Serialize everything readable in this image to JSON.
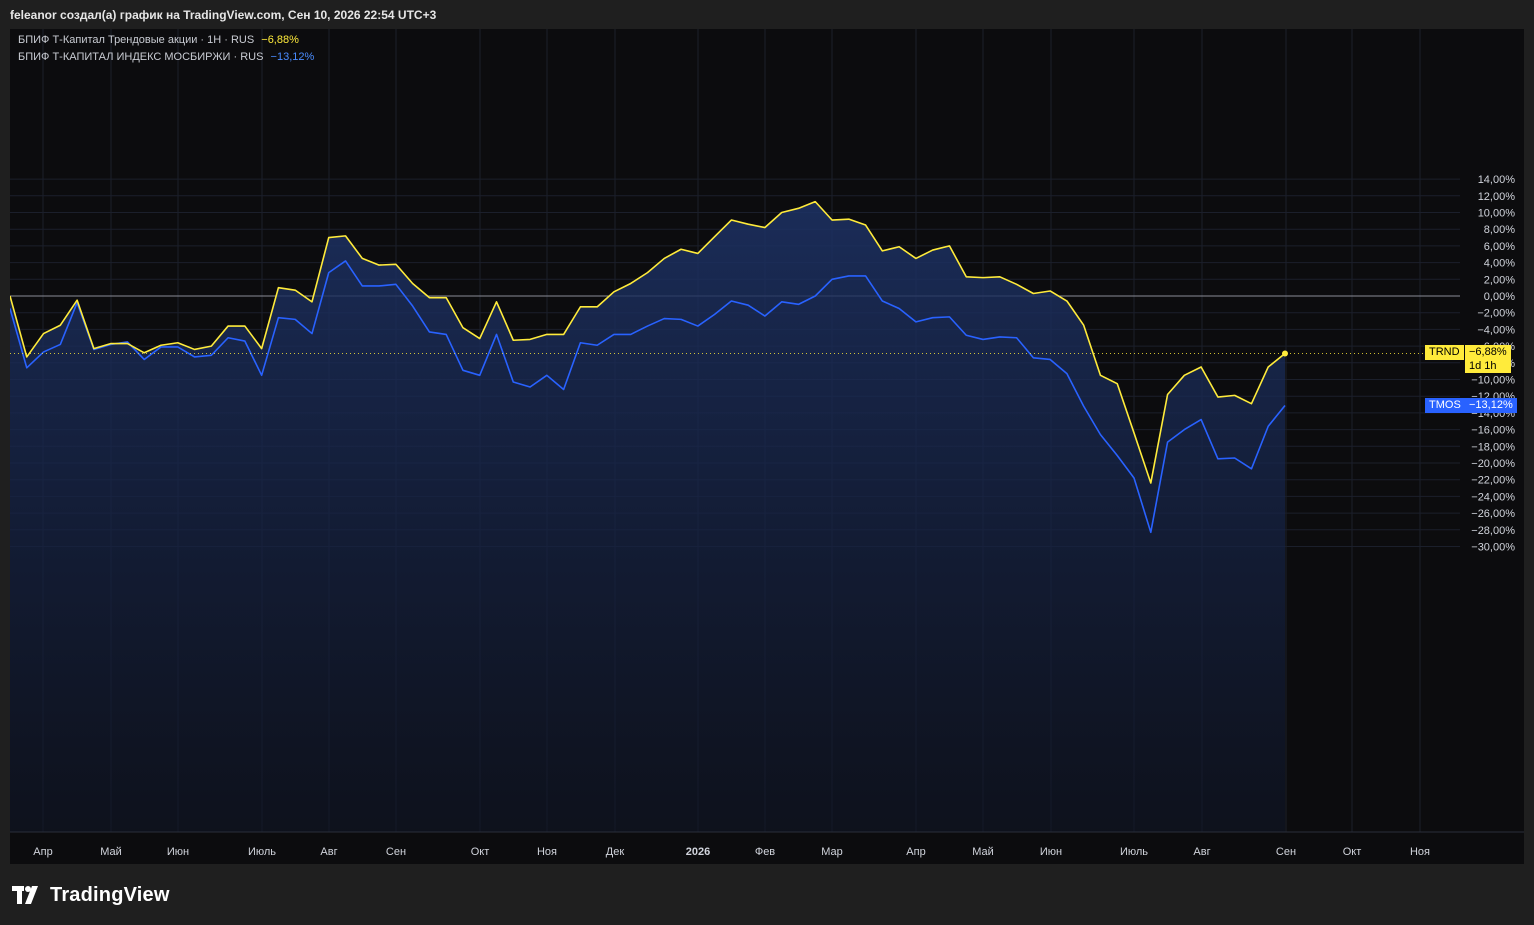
{
  "caption": "feleanor создал(а) график на TradingView.com, Сен 10, 2026 22:54 UTC+3",
  "brand": "TradingView",
  "colors": {
    "background": "#0c0c0e",
    "grid": "#1b1f2b",
    "axis_text": "#d1d4dc",
    "trnd": "#ffeb3b",
    "tmos": "#2962ff",
    "zero_line": "#8a8d96"
  },
  "legend": [
    {
      "label": "БПИФ Т-Капитал Трендовые акции · 1Н · RUS",
      "value": "−6,88%",
      "color": "#ffeb3b"
    },
    {
      "label": "БПИФ Т-КАПИТАЛ ИНДЕКС МОСБИРЖИ · RUS",
      "value": "−13,12%",
      "color": "#4a8cff"
    }
  ],
  "price_tags": {
    "trnd": {
      "symbol": "TRND",
      "value": "−6,88%",
      "sub": "1d 1h"
    },
    "tmos": {
      "symbol": "TMOS",
      "value": "−13,12%"
    }
  },
  "chart_data": {
    "type": "line",
    "y_unit": "%",
    "ylim": [
      -31,
      15.5
    ],
    "y_ticks": [
      "14,00%",
      "12,00%",
      "10,00%",
      "8,00%",
      "6,00%",
      "4,00%",
      "2,00%",
      "0,00%",
      "−2,00%",
      "−4,00%",
      "−6,00%",
      "−8,00%",
      "−10,00%",
      "−12,00%",
      "−14,00%",
      "−16,00%",
      "−18,00%",
      "−20,00%",
      "−22,00%",
      "−24,00%",
      "−26,00%",
      "−28,00%",
      "−30,00%"
    ],
    "x_ticks": [
      "Апр",
      "Май",
      "Июн",
      "Июль",
      "Авг",
      "Сен",
      "Окт",
      "Ноя",
      "Дек",
      "2026",
      "Фев",
      "Мар",
      "Апр",
      "Май",
      "Июн",
      "Июль",
      "Авг",
      "Сен",
      "Окт",
      "Ноя"
    ],
    "grid": true,
    "series": [
      {
        "name": "БПИФ Т-Капитал Трендовые акции",
        "values": [
          0,
          -7.3,
          -4.5,
          -3.5,
          -0.5,
          -6.3,
          -5.7,
          -5.7,
          -6.8,
          -5.9,
          -5.6,
          -6.4,
          -6.0,
          -3.6,
          -3.6,
          -6.3,
          1.0,
          0.7,
          -0.7,
          7.0,
          7.2,
          4.5,
          3.7,
          3.8,
          1.5,
          -0.2,
          -0.2,
          -3.8,
          -5.1,
          -0.7,
          -5.3,
          -5.2,
          -4.6,
          -4.6,
          -1.3,
          -1.3,
          0.5,
          1.5,
          2.8,
          4.5,
          5.6,
          5.1,
          7.1,
          9.1,
          8.6,
          8.2,
          10.0,
          10.5,
          11.3,
          9.1,
          9.2,
          8.5,
          5.4,
          5.9,
          4.5,
          5.5,
          6.0,
          2.3,
          2.2,
          2.3,
          1.4,
          0.3,
          0.6,
          -0.6,
          -3.5,
          -9.5,
          -10.5,
          -16.4,
          -22.4,
          -11.8,
          -9.5,
          -8.5,
          -12.1,
          -11.9,
          -12.9,
          -8.5,
          -6.88
        ]
      },
      {
        "name": "БПИФ Т-КАПИТАЛ ИНДЕКС МОСБИРЖИ",
        "values": [
          -1.5,
          -8.6,
          -6.7,
          -5.8,
          -0.8,
          -6.4,
          -5.8,
          -5.5,
          -7.6,
          -6.1,
          -6.1,
          -7.3,
          -7.1,
          -5.0,
          -5.4,
          -9.5,
          -2.6,
          -2.8,
          -4.5,
          2.8,
          4.2,
          1.2,
          1.2,
          1.4,
          -1.2,
          -4.3,
          -4.6,
          -8.9,
          -9.5,
          -4.6,
          -10.3,
          -10.9,
          -9.5,
          -11.2,
          -5.6,
          -5.9,
          -4.6,
          -4.6,
          -3.6,
          -2.7,
          -2.8,
          -3.6,
          -2.2,
          -0.6,
          -1.1,
          -2.4,
          -0.7,
          -1.0,
          0,
          2.0,
          2.4,
          2.4,
          -0.6,
          -1.5,
          -3.1,
          -2.6,
          -2.5,
          -4.7,
          -5.2,
          -4.9,
          -5.0,
          -7.4,
          -7.6,
          -9.3,
          -13.2,
          -16.6,
          -19.1,
          -21.8,
          -28.3,
          -17.5,
          -16.0,
          -14.8,
          -19.5,
          -19.4,
          -20.7,
          -15.6,
          -13.12
        ]
      }
    ]
  }
}
